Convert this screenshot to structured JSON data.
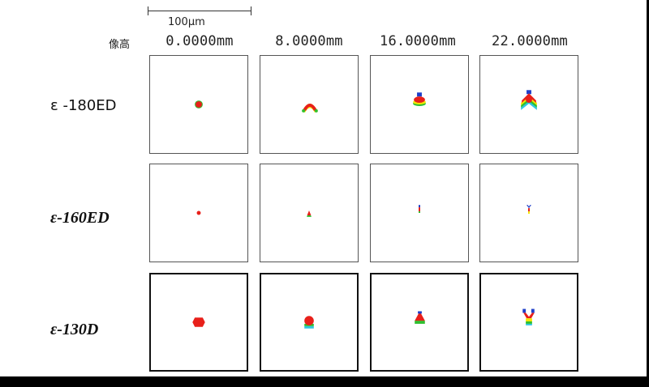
{
  "scale_bar": {
    "label": "100μm"
  },
  "column_header_label": "像高",
  "columns": [
    "0.0000mm",
    "8.0000mm",
    "16.0000mm",
    "22.0000mm"
  ],
  "rows": [
    {
      "label": "ε -180ED"
    },
    {
      "label": "ε-160ED"
    },
    {
      "label": "ε-130D"
    }
  ],
  "colors": {
    "red": "#e8201a",
    "green": "#2fbf2f",
    "yellow": "#f2e600",
    "blue": "#1f3fc9",
    "cyan": "#2ec7e0"
  },
  "spots": [
    [
      "dot-large",
      "arch-red",
      "stack-blue-red-yellow",
      "chevron-large"
    ],
    [
      "dot-small",
      "tri-small",
      "line-vertical",
      "line-vertical-split"
    ],
    [
      "dot-hex",
      "dot-band",
      "tri-band",
      "chevron-vertical"
    ]
  ]
}
